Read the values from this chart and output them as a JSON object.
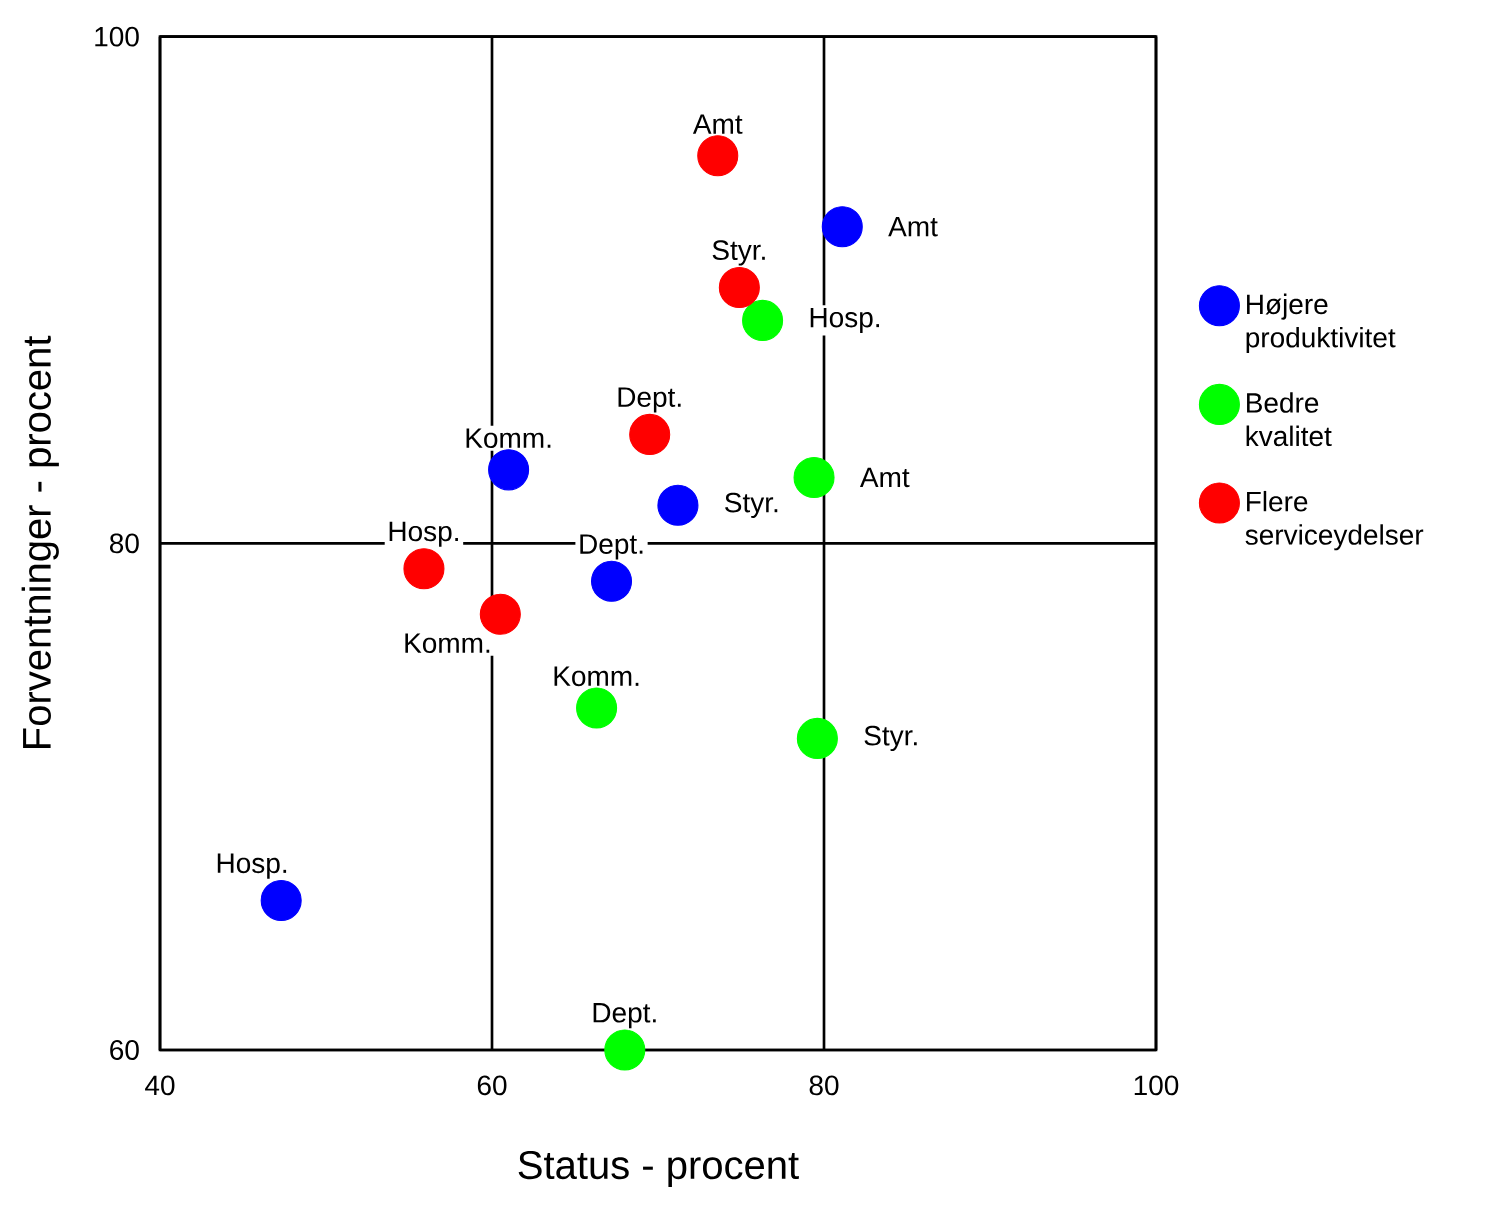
{
  "chart_data": {
    "type": "scatter",
    "xlabel": "Status - procent",
    "ylabel": "Forventninger - procent",
    "xlim": [
      40,
      100
    ],
    "ylim": [
      60,
      100
    ],
    "xticks": [
      40,
      60,
      80,
      100
    ],
    "yticks": [
      60,
      80,
      100
    ],
    "grid": true,
    "legend": "right",
    "marker": "circle",
    "series": [
      {
        "name": "Højere produktivitet",
        "color": "#0000ff",
        "x": [
          81.1,
          61.0,
          71.2,
          67.2,
          47.3
        ],
        "values": [
          92.5,
          82.9,
          81.5,
          78.5,
          65.9
        ]
      },
      {
        "name": "Bedre kvalitet",
        "color": "#00ff00",
        "x": [
          76.3,
          79.4,
          66.3,
          79.6,
          68.0
        ],
        "values": [
          88.8,
          82.6,
          73.5,
          72.3,
          60.0
        ]
      },
      {
        "name": "Flere serviceydelser",
        "color": "#ff0000",
        "x": [
          73.6,
          74.9,
          69.5,
          55.9,
          60.5
        ],
        "values": [
          95.3,
          90.1,
          84.3,
          79.0,
          77.2
        ]
      }
    ],
    "annotations": [
      {
        "text": "Amt",
        "x": 81.1,
        "y": 92.5
      },
      {
        "text": "Komm.",
        "x": 61.0,
        "y": 82.9
      },
      {
        "text": "Styr.",
        "x": 71.2,
        "y": 81.5
      },
      {
        "text": "Dept.",
        "x": 67.2,
        "y": 78.5
      },
      {
        "text": "Hosp.",
        "x": 47.3,
        "y": 65.9
      },
      {
        "text": "Hosp.",
        "x": 76.3,
        "y": 88.8
      },
      {
        "text": "Amt",
        "x": 79.4,
        "y": 82.6
      },
      {
        "text": "Komm.",
        "x": 66.3,
        "y": 73.5
      },
      {
        "text": "Styr.",
        "x": 79.6,
        "y": 72.3
      },
      {
        "text": "Dept.",
        "x": 68.0,
        "y": 60.0
      },
      {
        "text": "Amt",
        "x": 73.6,
        "y": 95.3
      },
      {
        "text": "Styr.",
        "x": 74.9,
        "y": 90.1
      },
      {
        "text": "Dept.",
        "x": 69.5,
        "y": 84.3
      },
      {
        "text": "Hosp.",
        "x": 55.9,
        "y": 79.0
      },
      {
        "text": "Komm.",
        "x": 60.5,
        "y": 77.2
      }
    ]
  }
}
